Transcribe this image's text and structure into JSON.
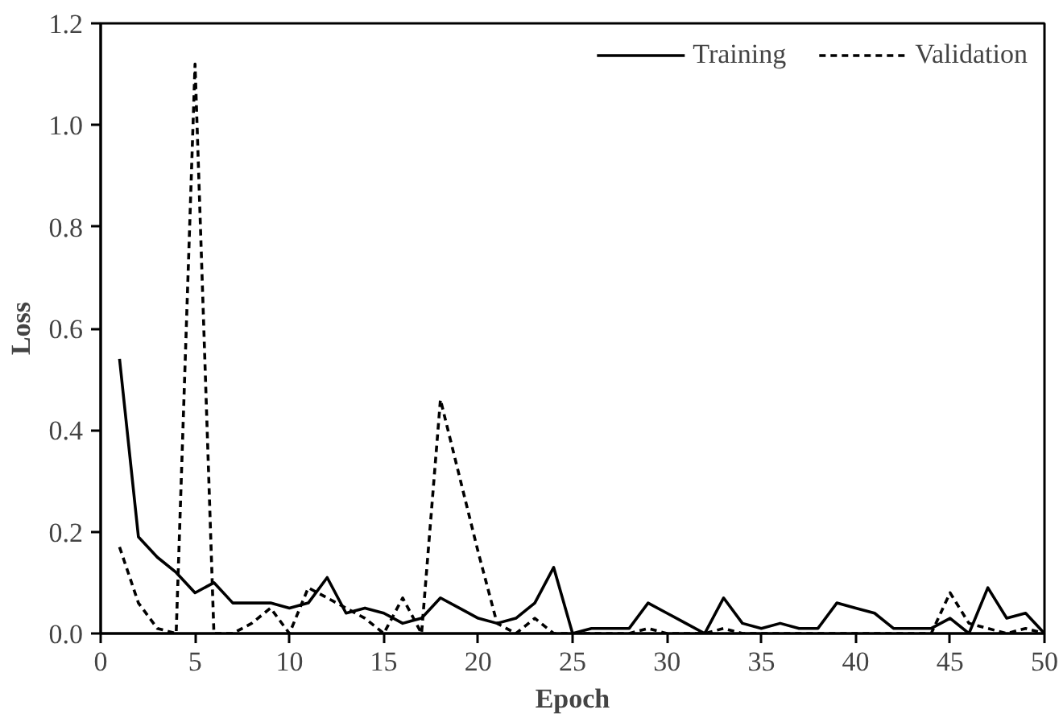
{
  "chart_data": {
    "type": "line",
    "xlabel": "Epoch",
    "ylabel": "Loss",
    "x": [
      1,
      2,
      3,
      4,
      5,
      6,
      7,
      8,
      9,
      10,
      11,
      12,
      13,
      14,
      15,
      16,
      17,
      18,
      19,
      20,
      21,
      22,
      23,
      24,
      25,
      26,
      27,
      28,
      29,
      30,
      31,
      32,
      33,
      34,
      35,
      36,
      37,
      38,
      39,
      40,
      41,
      42,
      43,
      44,
      45,
      46,
      47,
      48,
      49,
      50
    ],
    "series": [
      {
        "name": "Training",
        "color": "#000000",
        "line_style": "solid",
        "values": [
          0.54,
          0.19,
          0.15,
          0.12,
          0.08,
          0.1,
          0.06,
          0.06,
          0.06,
          0.05,
          0.06,
          0.11,
          0.04,
          0.05,
          0.04,
          0.02,
          0.03,
          0.07,
          0.05,
          0.03,
          0.02,
          0.03,
          0.06,
          0.13,
          0.0,
          0.01,
          0.01,
          0.01,
          0.06,
          0.04,
          0.02,
          0.0,
          0.07,
          0.02,
          0.01,
          0.02,
          0.01,
          0.01,
          0.06,
          0.05,
          0.04,
          0.01,
          0.01,
          0.01,
          0.03,
          0.0,
          0.09,
          0.03,
          0.04,
          0.0
        ]
      },
      {
        "name": "Validation",
        "color": "#000000",
        "line_style": "dashed",
        "values": [
          0.17,
          0.06,
          0.01,
          0.0,
          1.12,
          0.0,
          0.0,
          0.02,
          0.05,
          0.0,
          0.09,
          0.07,
          0.05,
          0.03,
          0.0,
          0.07,
          0.0,
          0.46,
          0.31,
          0.16,
          0.02,
          0.0,
          0.03,
          0.0,
          0.0,
          0.0,
          0.0,
          0.0,
          0.01,
          0.0,
          0.0,
          0.0,
          0.01,
          0.0,
          0.0,
          0.0,
          0.0,
          0.0,
          0.0,
          0.0,
          0.0,
          0.0,
          0.0,
          0.0,
          0.08,
          0.02,
          0.01,
          0.0,
          0.01,
          0.0
        ]
      }
    ],
    "xlim": [
      0,
      50
    ],
    "xticks": [
      0,
      5,
      10,
      15,
      20,
      25,
      30,
      35,
      40,
      45,
      50
    ],
    "ylim": [
      0,
      1.2
    ],
    "yticks": [
      {
        "value": 0,
        "label": "0.0"
      },
      {
        "value": 0.2,
        "label": "0.2"
      },
      {
        "value": 0.4,
        "label": "0.4"
      },
      {
        "value": 0.6,
        "label": "0.6"
      },
      {
        "value": 0.8,
        "label": "0.8"
      },
      {
        "value": 1.0,
        "label": "1.0"
      },
      {
        "value": 1.2,
        "label": "1.2"
      }
    ],
    "grid": false,
    "legend": "top right",
    "marker": "none"
  }
}
